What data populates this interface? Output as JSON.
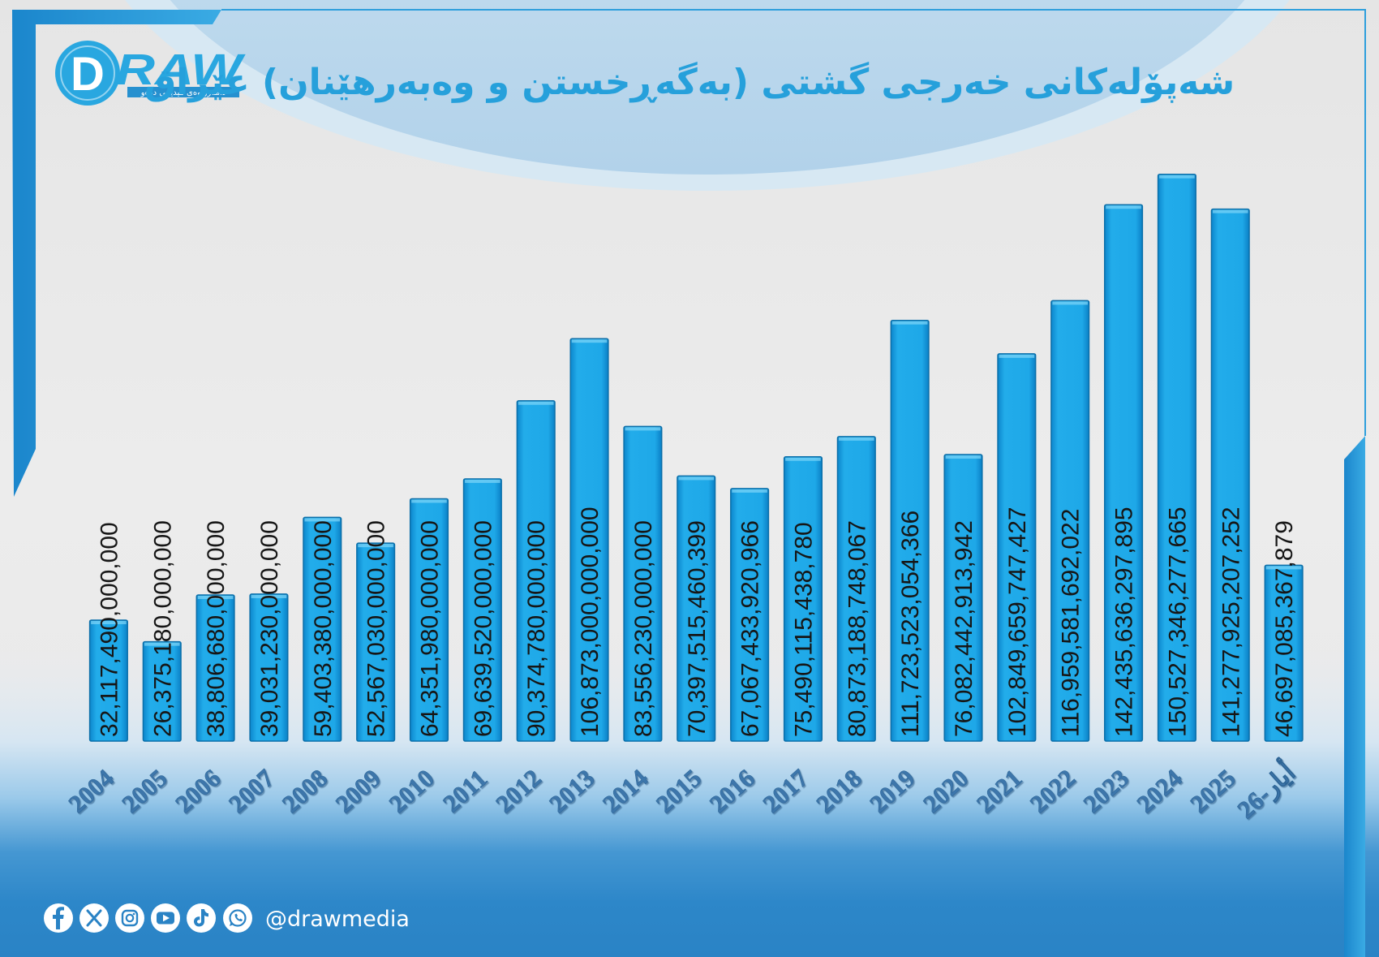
{
  "brand": {
    "mark": "D",
    "wordmark": "RAW",
    "tagline": "دامەزراوەی میدیایی درەو"
  },
  "chart_data": {
    "type": "bar",
    "title": "شەپۆلەکانی خەرجی گشتی (بەگەڕخستن و وەبەرهێنان) عێراق",
    "categories": [
      "2004",
      "2005",
      "2006",
      "2007",
      "2008",
      "2009",
      "2010",
      "2011",
      "2012",
      "2013",
      "2014",
      "2015",
      "2016",
      "2017",
      "2018",
      "2019",
      "2020",
      "2021",
      "2022",
      "2023",
      "2024",
      "2025",
      "أيار-26"
    ],
    "values": [
      32117490000000,
      26375180000000,
      38806680000000,
      39031230000000,
      59403380000000,
      52567030000000,
      64351980000000,
      69639520000000,
      90374780000000,
      106873000000000,
      83556230000000,
      70397515460399,
      67067433920966,
      75490115438780,
      80873188748067,
      111723523054366,
      76082442913942,
      102849659747427,
      116959581692022,
      142435636297895,
      150527346277665,
      141277925207252,
      46697085367879
    ],
    "data_labels": true,
    "grid": false,
    "show_legend": false
  },
  "footer": {
    "handle": "@drawmedia",
    "social_icons": [
      "facebook-icon",
      "x-icon",
      "instagram-icon",
      "youtube-icon",
      "tiktok-icon",
      "whatsapp-icon"
    ]
  },
  "colors": {
    "title": "#26a0db",
    "logo": "#29a7e0",
    "bar_border": "#0b6fa9",
    "data_label": "#161616",
    "tick_label": "#3c76ab",
    "frame": "#2a95d6",
    "footer_bg": "#2a83c5",
    "icon_glyph": "#2a83c5"
  }
}
